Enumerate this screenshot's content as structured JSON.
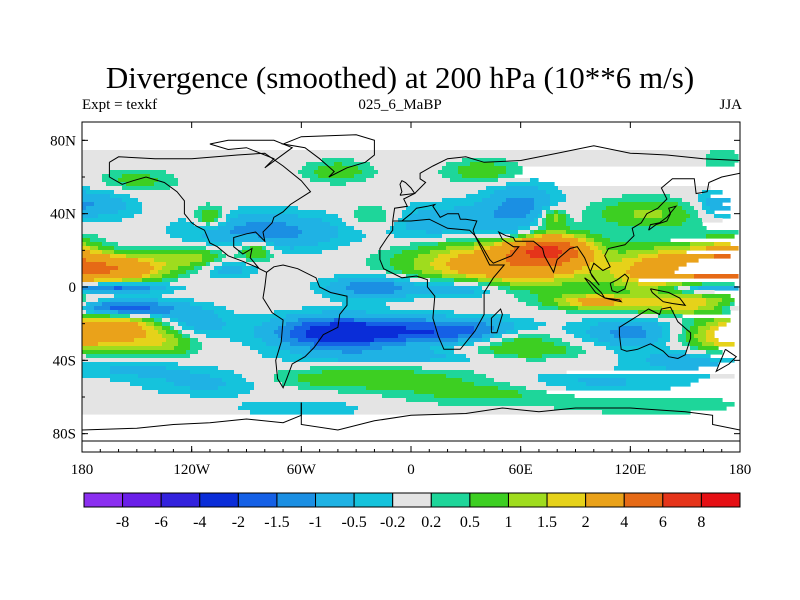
{
  "title": "Divergence (smoothed) at 200 hPa (10**6 m/s)",
  "subtitle_left": "Expt = texkf",
  "subtitle_center": "025_6_MaBP",
  "subtitle_right": "JJA",
  "chart_data": {
    "type": "heatmap",
    "title": "Divergence (smoothed) at 200 hPa (10**6 m/s)",
    "variable": "Divergence (smoothed)",
    "level": "200 hPa",
    "units": "10**6 m/s",
    "experiment": "texkf",
    "run": "025_6_MaBP",
    "season": "JJA",
    "x_range": [
      -180,
      180
    ],
    "y_range": [
      -90,
      90
    ],
    "x_ticks": [
      {
        "value": -180,
        "label": "180"
      },
      {
        "value": -120,
        "label": "120W"
      },
      {
        "value": -60,
        "label": "60W"
      },
      {
        "value": 0,
        "label": "0"
      },
      {
        "value": 60,
        "label": "60E"
      },
      {
        "value": 120,
        "label": "120E"
      },
      {
        "value": 180,
        "label": "180"
      }
    ],
    "y_ticks": [
      {
        "value": 80,
        "label": "80N"
      },
      {
        "value": 40,
        "label": "40N"
      },
      {
        "value": 0,
        "label": "0"
      },
      {
        "value": -40,
        "label": "40S"
      },
      {
        "value": -80,
        "label": "80S"
      }
    ],
    "contour_levels": [
      "-8",
      "-6",
      "-4",
      "-2",
      "-1.5",
      "-1",
      "-0.5",
      "-0.2",
      "0.2",
      "0.5",
      "1",
      "1.5",
      "2",
      "4",
      "6",
      "8"
    ],
    "level_colors": [
      "#8b2ff0",
      "#6a1fe8",
      "#3322dd",
      "#0a2dd8",
      "#1560e6",
      "#1b8fe3",
      "#1fb2e4",
      "#15c3dc",
      "#e4e4e4",
      "#1ed69a",
      "#3dcf22",
      "#9fdc1e",
      "#e6d21a",
      "#eaa21a",
      "#e66a16",
      "#e5341a",
      "#e50f14"
    ],
    "field_blobs": [
      {
        "lon": 50,
        "lat": 12,
        "rlon": 46,
        "rlat": 12,
        "value": 3.2
      },
      {
        "lon": 75,
        "lat": 20,
        "rlon": 20,
        "rlat": 8,
        "value": 5.5
      },
      {
        "lon": 150,
        "lat": 8,
        "rlon": 34,
        "rlat": 12,
        "value": 4.0
      },
      {
        "lon": 172,
        "lat": 14,
        "rlon": 16,
        "rlat": 10,
        "value": 2.5
      },
      {
        "lon": -160,
        "lat": 10,
        "rlon": 24,
        "rlat": 7,
        "value": 3.5
      },
      {
        "lon": -120,
        "lat": 16,
        "rlon": 18,
        "rlat": 6,
        "value": 1.3
      },
      {
        "lon": 100,
        "lat": -8,
        "rlon": 22,
        "rlat": 4,
        "value": 2.3
      },
      {
        "lon": 150,
        "lat": -10,
        "rlon": 30,
        "rlat": 5,
        "value": 1.6
      },
      {
        "lon": -165,
        "lat": -22,
        "rlon": 28,
        "rlat": 9,
        "value": 2.8
      },
      {
        "lon": -135,
        "lat": -30,
        "rlon": 18,
        "rlat": 8,
        "value": 1.2
      },
      {
        "lon": 175,
        "lat": -28,
        "rlon": 25,
        "rlat": 8,
        "value": 1.6
      },
      {
        "lon": 60,
        "lat": -35,
        "rlon": 34,
        "rlat": 5,
        "value": 1.0
      },
      {
        "lon": -25,
        "lat": -50,
        "rlon": 60,
        "rlat": 6,
        "value": 0.9
      },
      {
        "lon": 40,
        "lat": -58,
        "rlon": 45,
        "rlat": 6,
        "value": 0.7
      },
      {
        "lon": 130,
        "lat": -64,
        "rlon": 50,
        "rlat": 5,
        "value": 0.5
      },
      {
        "lon": -150,
        "lat": 58,
        "rlon": 20,
        "rlat": 6,
        "value": 0.7
      },
      {
        "lon": -40,
        "lat": 63,
        "rlon": 18,
        "rlat": 6,
        "value": 0.8
      },
      {
        "lon": 40,
        "lat": 63,
        "rlon": 20,
        "rlat": 6,
        "value": 0.9
      },
      {
        "lon": -110,
        "lat": 38,
        "rlon": 8,
        "rlat": 6,
        "value": 1.2
      },
      {
        "lon": 130,
        "lat": 40,
        "rlon": 30,
        "rlat": 8,
        "value": 1.1
      },
      {
        "lon": -20,
        "lat": 38,
        "rlon": 15,
        "rlat": 7,
        "value": 0.8
      },
      {
        "lon": 78,
        "lat": 38,
        "rlon": 7,
        "rlat": 5,
        "value": 1.4
      },
      {
        "lon": 60,
        "lat": -28,
        "rlon": 20,
        "rlat": 5,
        "value": 0.8
      },
      {
        "lon": 170,
        "lat": 70,
        "rlon": 10,
        "rlat": 5,
        "value": 0.5
      },
      {
        "lon": -85,
        "lat": 20,
        "rlon": 10,
        "rlat": 6,
        "value": 1.3
      },
      {
        "lon": -40,
        "lat": -25,
        "rlon": 35,
        "rlat": 9,
        "value": -2.6
      },
      {
        "lon": 20,
        "lat": -24,
        "rlon": 40,
        "rlat": 7,
        "value": -1.8
      },
      {
        "lon": -20,
        "lat": 0,
        "rlon": 25,
        "rlat": 6,
        "value": -1.5
      },
      {
        "lon": 30,
        "lat": 0,
        "rlon": 25,
        "rlat": 6,
        "value": -1.4
      },
      {
        "lon": -160,
        "lat": -12,
        "rlon": 30,
        "rlat": 5,
        "value": -2.5
      },
      {
        "lon": -160,
        "lat": 0,
        "rlon": 25,
        "rlat": 3,
        "value": -2.0
      },
      {
        "lon": 160,
        "lat": 0,
        "rlon": 25,
        "rlat": 4,
        "value": -3.0
      },
      {
        "lon": 120,
        "lat": -25,
        "rlon": 25,
        "rlat": 8,
        "value": -1.2
      },
      {
        "lon": -120,
        "lat": -20,
        "rlon": 20,
        "rlat": 8,
        "value": -1.0
      },
      {
        "lon": -80,
        "lat": 30,
        "rlon": 40,
        "rlat": 10,
        "value": -1.3
      },
      {
        "lon": 20,
        "lat": 35,
        "rlon": 40,
        "rlat": 10,
        "value": -0.9
      },
      {
        "lon": 60,
        "lat": 45,
        "rlon": 20,
        "rlat": 12,
        "value": -1.1
      },
      {
        "lon": -170,
        "lat": 45,
        "rlon": 20,
        "rlat": 8,
        "value": -0.8
      },
      {
        "lon": 170,
        "lat": 45,
        "rlon": 15,
        "rlat": 8,
        "value": -0.8
      },
      {
        "lon": 0,
        "lat": -38,
        "rlon": 60,
        "rlat": 4,
        "value": -0.7
      },
      {
        "lon": 150,
        "lat": -40,
        "rlon": 30,
        "rlat": 6,
        "value": -0.8
      },
      {
        "lon": -150,
        "lat": -45,
        "rlon": 30,
        "rlat": 5,
        "value": -0.6
      },
      {
        "lon": -110,
        "lat": -52,
        "rlon": 35,
        "rlat": 7,
        "value": -0.7
      },
      {
        "lon": 100,
        "lat": -52,
        "rlon": 50,
        "rlat": 6,
        "value": -0.6
      },
      {
        "lon": -60,
        "lat": -66,
        "rlon": 40,
        "rlat": 5,
        "value": -0.4
      },
      {
        "lon": 60,
        "lat": 28,
        "rlon": 14,
        "rlat": 4,
        "value": -0.8
      },
      {
        "lon": -100,
        "lat": 10,
        "rlon": 15,
        "rlat": 5,
        "value": -0.8
      }
    ]
  }
}
